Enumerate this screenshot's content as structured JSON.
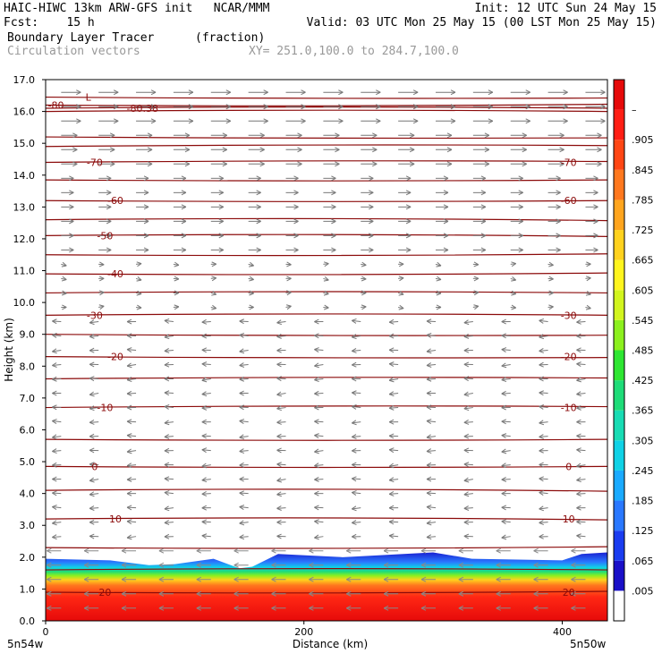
{
  "header": {
    "line1_left": "HAIC-HIWC 13km ARW-GFS init   NCAR/MMM",
    "line1_right": "Init: 12 UTC Sun 24 May 15",
    "fcst_label": "Fcst:    15 h",
    "valid": "Valid: 03 UTC Mon 25 May 15 (00 LST Mon 25 May 15)",
    "field_name": "Boundary Layer Tracer",
    "field_units": "(fraction)",
    "vector_name": "Circulation vectors",
    "xsec_coords": "XY= 251.0,100.0 to 284.7,100.0"
  },
  "chart_data": {
    "type": "heatmap",
    "xlabel": "Distance (km)",
    "ylabel": "Height (km)",
    "xlim": [
      0,
      435
    ],
    "ylim": [
      0,
      17
    ],
    "x_ticks": [
      "0",
      "200",
      "400"
    ],
    "x_end_labels": [
      "5n54w",
      "5n50w"
    ],
    "y_ticks": [
      "0.0",
      "1.0",
      "2.0",
      "3.0",
      "4.0",
      "5.0",
      "6.0",
      "7.0",
      "8.0",
      "9.0",
      "10.0",
      "11.0",
      "12.0",
      "13.0",
      "14.0",
      "15.0",
      "16.0",
      "17.0"
    ],
    "colorbar": {
      "labels": [
        ".005",
        ".065",
        ".125",
        ".185",
        ".245",
        ".305",
        ".365",
        ".425",
        ".485",
        ".545",
        ".605",
        ".665",
        ".725",
        ".785",
        ".845",
        ".905",
        "–"
      ],
      "colors": [
        "#ffffff",
        "#1a10c8",
        "#1a3cf0",
        "#2a78ff",
        "#1aaaff",
        "#10d2e6",
        "#18dcb4",
        "#1edc78",
        "#2ee632",
        "#8cf01e",
        "#d2f51e",
        "#fff51e",
        "#ffd21e",
        "#ffa51e",
        "#ff781e",
        "#ff4614",
        "#ff1e14",
        "#e60a0a"
      ]
    },
    "tracer_top_km": {
      "x": [
        0,
        50,
        80,
        100,
        130,
        150,
        160,
        180,
        230,
        300,
        330,
        400,
        415,
        435
      ],
      "y": [
        1.95,
        1.9,
        1.75,
        1.78,
        1.95,
        1.65,
        1.7,
        2.1,
        2.0,
        2.15,
        1.95,
        1.9,
        2.1,
        2.15
      ]
    },
    "temperature_contours": [
      {
        "label": "-80",
        "height_km": 16.2
      },
      {
        "label": "-80.38",
        "height_km": 16.1
      },
      {
        "label": "L",
        "height_km": 16.45
      },
      {
        "label": "-70",
        "height_km": 14.4
      },
      {
        "label": "-70",
        "height_km": 14.4
      },
      {
        "label": "-60",
        "height_km": 13.2
      },
      {
        "label": "-60",
        "height_km": 13.2
      },
      {
        "label": "-50",
        "height_km": 12.1
      },
      {
        "label": "-40",
        "height_km": 10.9
      },
      {
        "label": "-30",
        "height_km": 9.6
      },
      {
        "label": "-30",
        "height_km": 9.6
      },
      {
        "label": "-20",
        "height_km": 8.3
      },
      {
        "label": "-20",
        "height_km": 8.3
      },
      {
        "label": "-10",
        "height_km": 6.7
      },
      {
        "label": "-10",
        "height_km": 6.7
      },
      {
        "label": "0",
        "height_km": 4.85
      },
      {
        "label": "0",
        "height_km": 4.85
      },
      {
        "label": "10",
        "height_km": 3.2
      },
      {
        "label": "10",
        "height_km": 3.2
      },
      {
        "label": "20",
        "height_km": 0.9
      },
      {
        "label": "20",
        "height_km": 0.9
      }
    ],
    "unlabeled_contour_heights_km": [
      16.0,
      15.2,
      14.9,
      13.85,
      12.6,
      11.5,
      10.3,
      9.0,
      7.6,
      5.7,
      4.1,
      2.3,
      1.6
    ],
    "wind_vectors_direction_by_layer": [
      {
        "from_km": 9.5,
        "to_km": 17,
        "direction": "east"
      },
      {
        "from_km": 2.0,
        "to_km": 9.5,
        "direction": "west"
      },
      {
        "from_km": 0.0,
        "to_km": 2.0,
        "direction": "west"
      }
    ]
  }
}
